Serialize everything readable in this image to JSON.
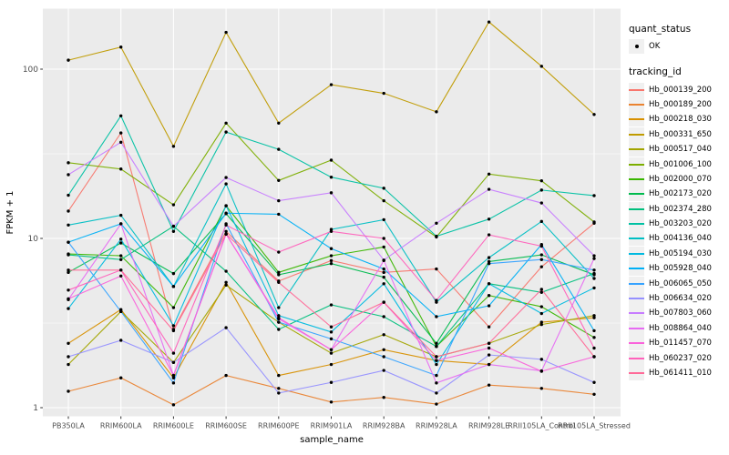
{
  "legend": {
    "quant_status_title": "quant_status",
    "quant_status_items": [
      {
        "label": "OK",
        "marker": "black-point"
      }
    ],
    "tracking_id_title": "tracking_id"
  },
  "chart_data": {
    "type": "line",
    "title": "",
    "xlabel": "sample_name",
    "ylabel": "FPKM + 1",
    "y_scale": "log10",
    "ylim": [
      0.9,
      230
    ],
    "y_ticks": [
      1,
      10,
      100
    ],
    "y_minor_ticks": [
      3.162,
      31.62
    ],
    "grid": "on",
    "panel_bg": "#EBEBEB",
    "grid_color": "#FFFFFF",
    "point_color": "#000000",
    "legend_position": "right",
    "x": [
      "PB350LA",
      "RRIM600LA",
      "RRIM600LE",
      "RRIM600SE",
      "RRIM600PE",
      "RRIM901LA",
      "RRIM928BA",
      "RRIM928LA",
      "RRIM928LE",
      "RRII105LA_Control",
      "RRII105LA_Stressed"
    ],
    "series": [
      {
        "name": "Hb_000139_200",
        "color": "#F8766D",
        "values": [
          14.5,
          42,
          2.9,
          11,
          5.6,
          7.4,
          6.3,
          6.6,
          3.0,
          6.8,
          12.3
        ]
      },
      {
        "name": "Hb_000189_200",
        "color": "#EA8331",
        "values": [
          1.25,
          1.5,
          1.04,
          1.55,
          1.3,
          1.08,
          1.15,
          1.05,
          1.36,
          1.3,
          1.2
        ]
      },
      {
        "name": "Hb_000218_030",
        "color": "#D89000",
        "values": [
          2.4,
          3.8,
          1.5,
          5.5,
          1.55,
          1.8,
          2.2,
          1.9,
          1.8,
          3.2,
          3.4
        ]
      },
      {
        "name": "Hb_000331_650",
        "color": "#C09B00",
        "values": [
          113,
          135,
          35,
          165,
          48,
          81,
          72,
          56,
          190,
          104,
          54
        ]
      },
      {
        "name": "Hb_000517_040",
        "color": "#A3A500",
        "values": [
          1.8,
          3.7,
          1.85,
          5.3,
          3.2,
          2.1,
          2.7,
          2.0,
          2.4,
          3.1,
          3.5
        ]
      },
      {
        "name": "Hb_001006_100",
        "color": "#7CAE00",
        "values": [
          28,
          25.7,
          15.8,
          48,
          22,
          29,
          16.7,
          10.2,
          24,
          21.9,
          12.5
        ]
      },
      {
        "name": "Hb_002000_070",
        "color": "#39B600",
        "values": [
          8.1,
          7.9,
          3.9,
          15.6,
          6.3,
          7.9,
          8.9,
          2.3,
          4.6,
          3.95,
          2.6
        ]
      },
      {
        "name": "Hb_002173_020",
        "color": "#00BB4E",
        "values": [
          6.3,
          9.4,
          6.2,
          14,
          6.1,
          7.1,
          5.9,
          2.4,
          7.3,
          8.0,
          6.1
        ]
      },
      {
        "name": "Hb_002374_280",
        "color": "#00BF7D",
        "values": [
          8.0,
          7.5,
          11.8,
          6.4,
          2.9,
          4.05,
          3.45,
          2.3,
          5.4,
          4.8,
          6.2
        ]
      },
      {
        "name": "Hb_003203_020",
        "color": "#00C1A3",
        "values": [
          18,
          53,
          11,
          42.5,
          33.6,
          23,
          19.8,
          10.3,
          13,
          19.3,
          17.9
        ]
      },
      {
        "name": "Hb_004136_040",
        "color": "#00BFC4",
        "values": [
          12,
          13.7,
          5.2,
          21,
          3.9,
          11.3,
          12.9,
          4.2,
          7.7,
          12.6,
          5.8
        ]
      },
      {
        "name": "Hb_005194_030",
        "color": "#00BAE0",
        "values": [
          3.85,
          9.9,
          3.05,
          15.6,
          3.5,
          2.8,
          5.4,
          1.8,
          5.4,
          3.6,
          5.1
        ]
      },
      {
        "name": "Hb_005928_040",
        "color": "#00B0F6",
        "values": [
          9.5,
          12.2,
          5.2,
          14.1,
          13.9,
          8.7,
          6.6,
          3.45,
          4.0,
          9.2,
          2.85
        ]
      },
      {
        "name": "Hb_006065_050",
        "color": "#35A2FF",
        "values": [
          9.5,
          3.7,
          1.4,
          12.2,
          3.2,
          2.55,
          2.0,
          1.55,
          7.1,
          7.5,
          6.5
        ]
      },
      {
        "name": "Hb_006634_020",
        "color": "#9590FF",
        "values": [
          2.0,
          2.5,
          1.85,
          2.97,
          1.22,
          1.41,
          1.66,
          1.22,
          2.05,
          1.93,
          1.41
        ]
      },
      {
        "name": "Hb_007803_060",
        "color": "#C77CFF",
        "values": [
          23.8,
          37,
          11.8,
          22.9,
          16.7,
          18.6,
          7.45,
          12.3,
          19.5,
          16.2,
          7.9
        ]
      },
      {
        "name": "Hb_008864_040",
        "color": "#E76BF3",
        "values": [
          4.35,
          12.2,
          1.55,
          10.6,
          3.35,
          2.2,
          7.4,
          1.4,
          1.8,
          1.65,
          7.6
        ]
      },
      {
        "name": "Hb_011457_070",
        "color": "#FA62DB",
        "values": [
          4.4,
          6.0,
          1.55,
          10.6,
          3.4,
          2.2,
          4.2,
          1.9,
          2.25,
          1.64,
          2.0
        ]
      },
      {
        "name": "Hb_060237_020",
        "color": "#FF62BC",
        "values": [
          4.95,
          6.5,
          2.1,
          12,
          8.3,
          11,
          10,
          4.3,
          10.5,
          9.0,
          2.25
        ]
      },
      {
        "name": "Hb_061411_010",
        "color": "#FF6A98",
        "values": [
          6.5,
          6.5,
          2.85,
          10.6,
          5.5,
          3.0,
          4.2,
          2.0,
          2.4,
          5.0,
          2.0
        ]
      }
    ]
  }
}
